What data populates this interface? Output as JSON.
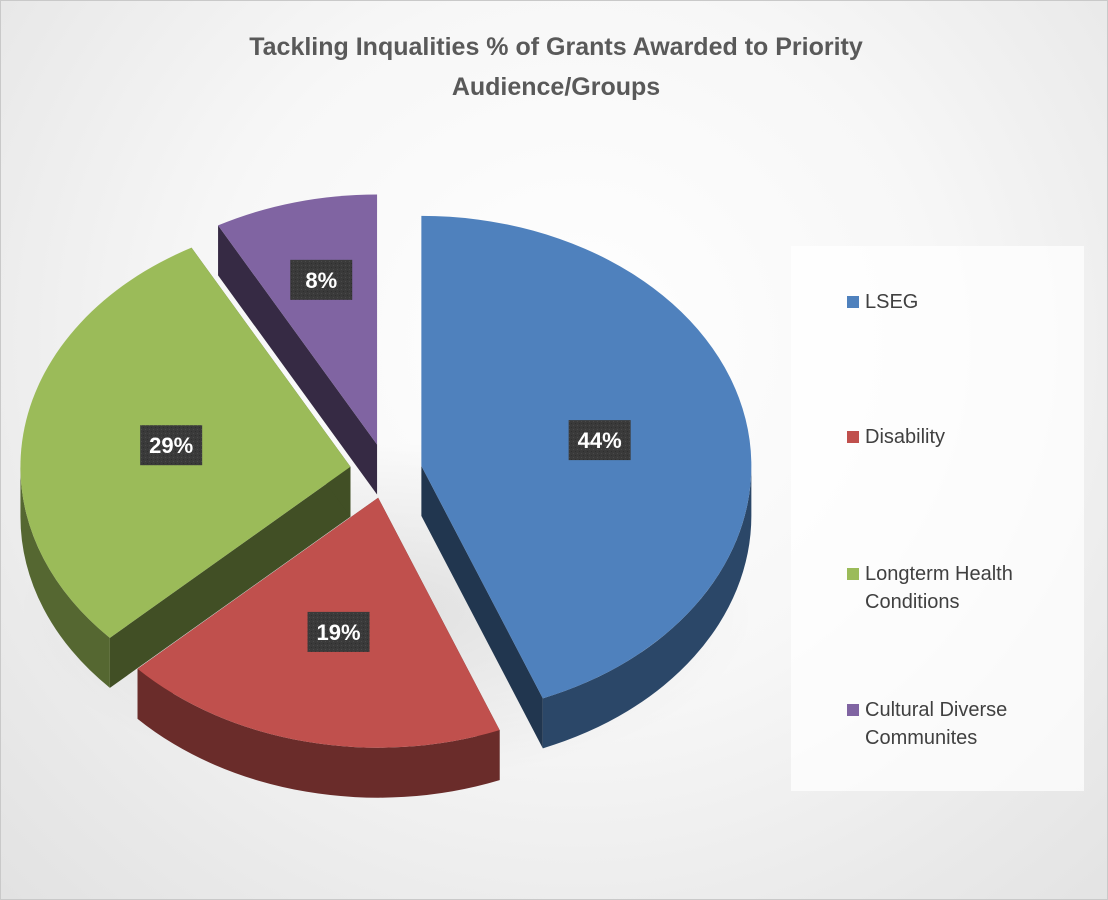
{
  "chart_data": {
    "type": "pie",
    "title_lines": [
      "Tackling Inqualities % of Grants Awarded to Priority",
      "Audience/Groups"
    ],
    "categories": [
      "LSEG",
      "Disability",
      "Longterm Health Conditions",
      "Cultural Diverse Communites"
    ],
    "legend_lines": [
      [
        "LSEG"
      ],
      [
        "Disability"
      ],
      [
        "Longterm Health",
        "Conditions"
      ],
      [
        "Cultural Diverse",
        "Communites"
      ]
    ],
    "values": [
      44,
      19,
      29,
      8
    ],
    "labels": [
      "44%",
      "19%",
      "29%",
      "8%"
    ],
    "colors": [
      "#4f81bd",
      "#c0504d",
      "#9bbb59",
      "#8064a2"
    ],
    "legend_position": "right",
    "style": "3d-exploded"
  }
}
